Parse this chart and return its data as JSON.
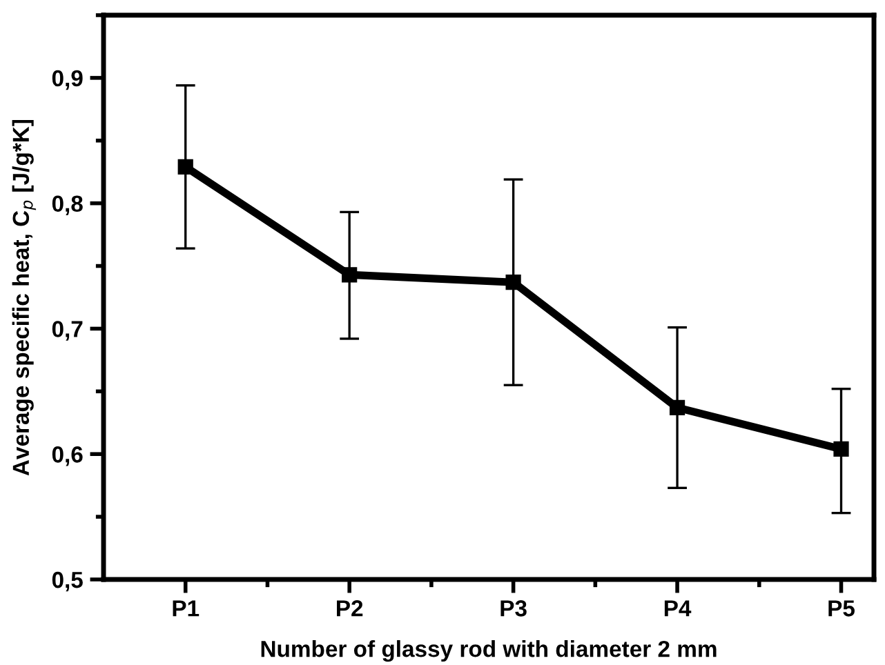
{
  "chart_data": {
    "type": "line",
    "xlabel": "Number of glassy rod with diameter 2 mm",
    "ylabel": "Average specific heat, C$_{p}$ [J/g*K]",
    "categories": [
      "P1",
      "P2",
      "P3",
      "P4",
      "P5"
    ],
    "series": [
      {
        "color": "#000000",
        "values": [
          0.829,
          0.743,
          0.737,
          0.637,
          0.604
        ],
        "errors": [
          [
            0.764,
            0.894
          ],
          [
            0.692,
            0.793
          ],
          [
            0.655,
            0.819
          ],
          [
            0.573,
            0.701
          ],
          [
            0.553,
            0.652
          ]
        ]
      }
    ],
    "ylim": [
      0.5,
      0.95
    ],
    "yticks": [
      {
        "value": 0.5,
        "label": "0,5"
      },
      {
        "value": 0.6,
        "label": "0,6"
      },
      {
        "value": 0.7,
        "label": "0,7"
      },
      {
        "value": 0.8,
        "label": "0,8"
      },
      {
        "value": 0.9,
        "label": "0,9"
      }
    ],
    "marker": "square",
    "line_style": "solid",
    "grid": false
  }
}
